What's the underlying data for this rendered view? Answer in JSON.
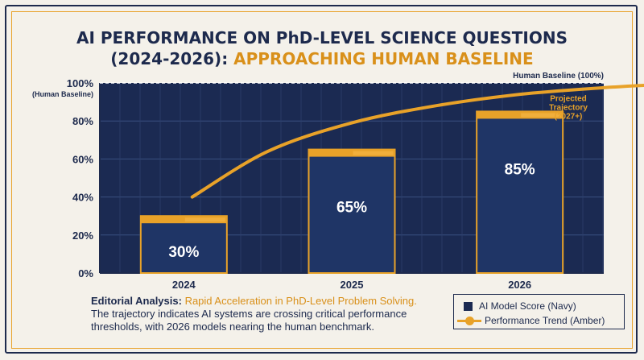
{
  "title": {
    "line1": "AI PERFORMANCE ON PhD-LEVEL SCIENCE QUESTIONS",
    "line2_prefix": "(2024-2026): ",
    "line2_accent": "APPROACHING HUMAN BASELINE"
  },
  "colors": {
    "navy": "#1d2a4d",
    "plot_bg": "#1b2a52",
    "bar_fill": "#1f3566",
    "amber": "#e8a229",
    "amber_dark": "#d9901a",
    "background": "#f4f1ea"
  },
  "chart_data": {
    "type": "bar",
    "categories": [
      "2024",
      "2025",
      "2026"
    ],
    "series": [
      {
        "name": "AI Model Score (Navy)",
        "values": [
          30,
          65,
          85
        ],
        "labels": [
          "30%",
          "65%",
          "85%"
        ]
      }
    ],
    "trend": {
      "name": "Performance Trend (Amber)",
      "x": [
        0.55,
        1.0,
        1.5,
        2.0,
        2.5,
        3.0,
        3.3
      ],
      "y": [
        40,
        64,
        79,
        88,
        94,
        97.5,
        99
      ]
    },
    "ylim": [
      0,
      100
    ],
    "yticks": [
      0,
      20,
      40,
      60,
      80,
      100
    ],
    "ytick_labels": [
      "0%",
      "20%",
      "40%",
      "60%",
      "80%",
      "100%"
    ],
    "ytick_sublabel": "(Human Baseline)",
    "baseline": {
      "value": 100,
      "label": "Human Baseline (100%)"
    },
    "annotation": [
      "Projected",
      "Trajectory",
      "(2027+)"
    ],
    "grid": true,
    "legend": "bottom-right"
  },
  "editorial": {
    "lead": "Editorial Analysis: ",
    "highlight": "Rapid Acceleration in PhD-Level Problem Solving.",
    "body": "The trajectory indicates AI systems are crossing critical performance thresholds, with 2026 models nearing the human benchmark."
  },
  "legend": {
    "items": [
      "AI Model Score (Navy)",
      "Performance Trend (Amber)"
    ]
  }
}
